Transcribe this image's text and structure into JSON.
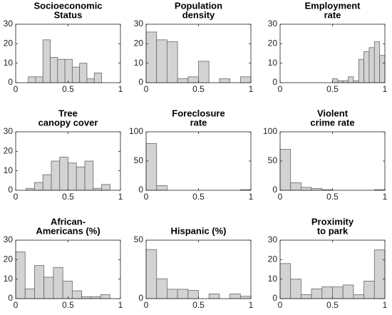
{
  "chart_data": [
    {
      "type": "histogram",
      "title": [
        "Socioeconomic",
        "Status"
      ],
      "bins": [
        0.12,
        0.19,
        0.26,
        0.33,
        0.4,
        0.47,
        0.54,
        0.61,
        0.68,
        0.75,
        0.82
      ],
      "counts": [
        3,
        3,
        22,
        13,
        12,
        12,
        8,
        10,
        2,
        5
      ],
      "color": "#d3d3d3",
      "xlim": [
        0,
        1
      ],
      "xticks": [
        0,
        0.5,
        1
      ],
      "ylim": [
        0,
        30
      ],
      "yticks": [
        0,
        10,
        20,
        30
      ]
    },
    {
      "type": "histogram",
      "title": [
        "Population",
        "density"
      ],
      "bins": [
        0,
        0.1,
        0.2,
        0.3,
        0.4,
        0.5,
        0.6,
        0.7,
        0.8,
        0.9,
        1
      ],
      "counts": [
        26,
        22,
        21,
        2,
        3,
        11,
        0,
        2,
        0,
        3
      ],
      "color": "#d3d3d3",
      "xlim": [
        0,
        1
      ],
      "xticks": [
        0,
        0.5,
        1
      ],
      "ylim": [
        0,
        30
      ],
      "yticks": [
        0,
        10,
        20,
        30
      ]
    },
    {
      "type": "histogram",
      "title": [
        "Employment",
        "rate"
      ],
      "bins": [
        0.5,
        0.55,
        0.6,
        0.65,
        0.7,
        0.75,
        0.8,
        0.85,
        0.9,
        0.95,
        1
      ],
      "counts": [
        2,
        1,
        1,
        3,
        1,
        12,
        16,
        18,
        21,
        14
      ],
      "color": "#d3d3d3",
      "xlim": [
        0,
        1
      ],
      "xticks": [
        0,
        0.5,
        1
      ],
      "ylim": [
        0,
        30
      ],
      "yticks": [
        0,
        10,
        20,
        30
      ]
    },
    {
      "type": "histogram",
      "title": [
        "Tree",
        "canopy cover"
      ],
      "bins": [
        0.1,
        0.18,
        0.26,
        0.34,
        0.42,
        0.5,
        0.58,
        0.66,
        0.74,
        0.82,
        0.9
      ],
      "counts": [
        1,
        4,
        8,
        15,
        17,
        14,
        12,
        15,
        1,
        3
      ],
      "color": "#d3d3d3",
      "xlim": [
        0,
        1
      ],
      "xticks": [
        0,
        0.5,
        1
      ],
      "ylim": [
        0,
        30
      ],
      "yticks": [
        0,
        10,
        20,
        30
      ]
    },
    {
      "type": "histogram",
      "title": [
        "Foreclosure",
        "rate"
      ],
      "bins": [
        0,
        0.1,
        0.2,
        0.3,
        0.4,
        0.5,
        0.6,
        0.7,
        0.8,
        0.9,
        1
      ],
      "counts": [
        80,
        8,
        0,
        0,
        0,
        0,
        0,
        0,
        0,
        1
      ],
      "color": "#d3d3d3",
      "xlim": [
        0,
        1
      ],
      "xticks": [
        0,
        0.5,
        1
      ],
      "ylim": [
        0,
        100
      ],
      "yticks": [
        0,
        50,
        100
      ]
    },
    {
      "type": "histogram",
      "title": [
        "Violent",
        "crime rate"
      ],
      "bins": [
        0,
        0.1,
        0.2,
        0.3,
        0.4,
        0.5,
        0.6,
        0.7,
        0.8,
        0.9,
        1
      ],
      "counts": [
        70,
        13,
        5,
        3,
        1,
        0,
        0,
        0,
        0,
        1
      ],
      "color": "#d3d3d3",
      "xlim": [
        0,
        1
      ],
      "xticks": [
        0,
        0.5,
        1
      ],
      "ylim": [
        0,
        100
      ],
      "yticks": [
        0,
        50,
        100
      ]
    },
    {
      "type": "histogram",
      "title": [
        "African-",
        "Americans (%)"
      ],
      "bins": [
        0,
        0.09,
        0.18,
        0.27,
        0.36,
        0.45,
        0.54,
        0.63,
        0.72,
        0.81,
        0.9
      ],
      "counts": [
        24,
        5,
        17,
        11,
        16,
        9,
        4,
        1,
        1,
        2
      ],
      "color": "#d3d3d3",
      "xlim": [
        0,
        1
      ],
      "xticks": [
        0,
        0.5,
        1
      ],
      "ylim": [
        0,
        30
      ],
      "yticks": [
        0,
        10,
        20,
        30
      ]
    },
    {
      "type": "histogram",
      "title": [
        "Hispanic (%)"
      ],
      "bins": [
        0,
        0.1,
        0.2,
        0.3,
        0.4,
        0.5,
        0.6,
        0.7,
        0.8,
        0.9,
        1
      ],
      "counts": [
        42,
        17,
        8,
        8,
        7,
        0,
        4,
        0,
        4,
        2
      ],
      "color": "#d3d3d3",
      "xlim": [
        0,
        1
      ],
      "xticks": [
        0,
        0.5,
        1
      ],
      "ylim": [
        0,
        50
      ],
      "yticks": [
        0,
        50
      ]
    },
    {
      "type": "histogram",
      "title": [
        "Proximity",
        "to park"
      ],
      "bins": [
        0,
        0.1,
        0.2,
        0.3,
        0.4,
        0.5,
        0.6,
        0.7,
        0.8,
        0.9,
        1
      ],
      "counts": [
        18,
        10,
        2,
        5,
        6,
        6,
        7,
        2,
        9,
        25
      ],
      "color": "#d3d3d3",
      "xlim": [
        0,
        1
      ],
      "xticks": [
        0,
        0.5,
        1
      ],
      "ylim": [
        0,
        30
      ],
      "yticks": [
        0,
        10,
        20,
        30
      ]
    }
  ]
}
